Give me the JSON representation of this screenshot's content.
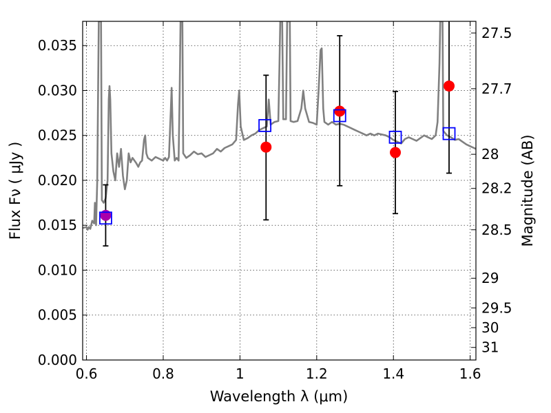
{
  "chart_data": {
    "type": "scatter",
    "title": "",
    "xlabel": "Wavelength  λ (μm)",
    "ylabel": "Flux  Fν  ( μJy )",
    "y2label": "Magnitude (AB)",
    "xlim": [
      0.59,
      1.615
    ],
    "ylim": [
      0.0,
      0.0377
    ],
    "grid": true,
    "x_ticks": [
      0.6,
      0.8,
      1.0,
      1.2,
      1.4,
      1.6
    ],
    "x_tick_labels": [
      "0.6",
      "0.8",
      "1",
      "1.2",
      "1.4",
      "1.6"
    ],
    "y_ticks": [
      0.0,
      0.005,
      0.01,
      0.015,
      0.02,
      0.025,
      0.03,
      0.035
    ],
    "y_tick_labels": [
      "0.000",
      "0.005",
      "0.010",
      "0.015",
      "0.020",
      "0.025",
      "0.030",
      "0.035"
    ],
    "y2_ticks": [
      {
        "label": "27.5",
        "flux": 0.0364
      },
      {
        "label": "27.7",
        "flux": 0.0302
      },
      {
        "label": "28",
        "flux": 0.0229
      },
      {
        "label": "28.2",
        "flux": 0.0191
      },
      {
        "label": "28.5",
        "flux": 0.0145
      },
      {
        "label": "29",
        "flux": 0.0091
      },
      {
        "label": "29.5",
        "flux": 0.0058
      },
      {
        "label": "30",
        "flux": 0.0036
      },
      {
        "label": "31",
        "flux": 0.0014
      }
    ],
    "colors": {
      "model": "#808080",
      "observed": "#ff0000",
      "synthetic": "#0000ff",
      "errorbar": "#000000",
      "overlap": "#aa00aa"
    },
    "series": [
      {
        "key": "model_spectrum",
        "style": "line",
        "points": [
          [
            0.59,
            0.0147
          ],
          [
            0.6,
            0.0148
          ],
          [
            0.603,
            0.0145
          ],
          [
            0.606,
            0.0148
          ],
          [
            0.61,
            0.0146
          ],
          [
            0.615,
            0.0155
          ],
          [
            0.62,
            0.0152
          ],
          [
            0.622,
            0.0175
          ],
          [
            0.625,
            0.015
          ],
          [
            0.628,
            0.02
          ],
          [
            0.632,
            0.0377
          ],
          [
            0.638,
            0.0377
          ],
          [
            0.64,
            0.0178
          ],
          [
            0.645,
            0.0175
          ],
          [
            0.65,
            0.018
          ],
          [
            0.655,
            0.02
          ],
          [
            0.658,
            0.029
          ],
          [
            0.66,
            0.0305
          ],
          [
            0.662,
            0.029
          ],
          [
            0.665,
            0.023
          ],
          [
            0.67,
            0.021
          ],
          [
            0.675,
            0.02
          ],
          [
            0.68,
            0.023
          ],
          [
            0.685,
            0.0215
          ],
          [
            0.69,
            0.0235
          ],
          [
            0.695,
            0.0205
          ],
          [
            0.7,
            0.019
          ],
          [
            0.705,
            0.02
          ],
          [
            0.71,
            0.023
          ],
          [
            0.715,
            0.022
          ],
          [
            0.72,
            0.0225
          ],
          [
            0.725,
            0.0222
          ],
          [
            0.73,
            0.0219
          ],
          [
            0.735,
            0.0215
          ],
          [
            0.74,
            0.022
          ],
          [
            0.745,
            0.0222
          ],
          [
            0.75,
            0.0245
          ],
          [
            0.753,
            0.025
          ],
          [
            0.756,
            0.023
          ],
          [
            0.76,
            0.0225
          ],
          [
            0.77,
            0.0222
          ],
          [
            0.78,
            0.0226
          ],
          [
            0.79,
            0.0224
          ],
          [
            0.8,
            0.0222
          ],
          [
            0.805,
            0.0225
          ],
          [
            0.81,
            0.0222
          ],
          [
            0.815,
            0.0226
          ],
          [
            0.82,
            0.028
          ],
          [
            0.822,
            0.0303
          ],
          [
            0.825,
            0.025
          ],
          [
            0.83,
            0.0222
          ],
          [
            0.835,
            0.0225
          ],
          [
            0.84,
            0.0222
          ],
          [
            0.843,
            0.03
          ],
          [
            0.845,
            0.0377
          ],
          [
            0.85,
            0.0377
          ],
          [
            0.852,
            0.023
          ],
          [
            0.86,
            0.0225
          ],
          [
            0.87,
            0.0228
          ],
          [
            0.88,
            0.0232
          ],
          [
            0.89,
            0.0229
          ],
          [
            0.9,
            0.023
          ],
          [
            0.91,
            0.0226
          ],
          [
            0.92,
            0.0228
          ],
          [
            0.93,
            0.023
          ],
          [
            0.94,
            0.0235
          ],
          [
            0.95,
            0.0232
          ],
          [
            0.96,
            0.0236
          ],
          [
            0.97,
            0.0238
          ],
          [
            0.98,
            0.024
          ],
          [
            0.99,
            0.0245
          ],
          [
            0.995,
            0.0285
          ],
          [
            0.998,
            0.03
          ],
          [
            1.002,
            0.026
          ],
          [
            1.01,
            0.0245
          ],
          [
            1.02,
            0.0247
          ],
          [
            1.03,
            0.025
          ],
          [
            1.04,
            0.0252
          ],
          [
            1.05,
            0.0256
          ],
          [
            1.06,
            0.0258
          ],
          [
            1.07,
            0.026
          ],
          [
            1.075,
            0.029
          ],
          [
            1.08,
            0.0262
          ],
          [
            1.09,
            0.0265
          ],
          [
            1.1,
            0.0266
          ],
          [
            1.103,
            0.033
          ],
          [
            1.105,
            0.0377
          ],
          [
            1.11,
            0.0377
          ],
          [
            1.113,
            0.0268
          ],
          [
            1.12,
            0.0268
          ],
          [
            1.123,
            0.0377
          ],
          [
            1.13,
            0.0377
          ],
          [
            1.132,
            0.0266
          ],
          [
            1.14,
            0.0265
          ],
          [
            1.15,
            0.0266
          ],
          [
            1.16,
            0.028
          ],
          [
            1.165,
            0.03
          ],
          [
            1.17,
            0.028
          ],
          [
            1.18,
            0.0265
          ],
          [
            1.19,
            0.0264
          ],
          [
            1.2,
            0.0262
          ],
          [
            1.205,
            0.03
          ],
          [
            1.21,
            0.0345
          ],
          [
            1.213,
            0.0347
          ],
          [
            1.217,
            0.028
          ],
          [
            1.22,
            0.0265
          ],
          [
            1.23,
            0.0262
          ],
          [
            1.24,
            0.0265
          ],
          [
            1.25,
            0.0262
          ],
          [
            1.26,
            0.0263
          ],
          [
            1.27,
            0.0262
          ],
          [
            1.28,
            0.026
          ],
          [
            1.29,
            0.0258
          ],
          [
            1.3,
            0.0256
          ],
          [
            1.31,
            0.0254
          ],
          [
            1.32,
            0.0252
          ],
          [
            1.33,
            0.025
          ],
          [
            1.34,
            0.0252
          ],
          [
            1.35,
            0.025
          ],
          [
            1.36,
            0.0252
          ],
          [
            1.37,
            0.0251
          ],
          [
            1.38,
            0.025
          ],
          [
            1.39,
            0.0248
          ],
          [
            1.4,
            0.0245
          ],
          [
            1.41,
            0.0243
          ],
          [
            1.42,
            0.0241
          ],
          [
            1.43,
            0.0246
          ],
          [
            1.44,
            0.0248
          ],
          [
            1.45,
            0.0246
          ],
          [
            1.46,
            0.0244
          ],
          [
            1.47,
            0.0247
          ],
          [
            1.48,
            0.025
          ],
          [
            1.49,
            0.0248
          ],
          [
            1.5,
            0.0246
          ],
          [
            1.51,
            0.025
          ],
          [
            1.515,
            0.0265
          ],
          [
            1.52,
            0.033
          ],
          [
            1.522,
            0.0377
          ],
          [
            1.528,
            0.0377
          ],
          [
            1.53,
            0.0255
          ],
          [
            1.54,
            0.025
          ],
          [
            1.55,
            0.0248
          ],
          [
            1.56,
            0.0245
          ],
          [
            1.57,
            0.0246
          ],
          [
            1.58,
            0.0243
          ],
          [
            1.59,
            0.024
          ],
          [
            1.6,
            0.0238
          ],
          [
            1.61,
            0.0236
          ],
          [
            1.615,
            0.0235
          ]
        ]
      },
      {
        "key": "observed",
        "style": "points",
        "marker": "circle",
        "points": [
          {
            "x": 1.068,
            "y": 0.0237,
            "err": [
              0.0156,
              0.0317
            ]
          },
          {
            "x": 1.26,
            "y": 0.0277,
            "err": [
              0.0194,
              0.0361
            ]
          },
          {
            "x": 1.405,
            "y": 0.0231,
            "err": [
              0.0163,
              0.0299
            ]
          },
          {
            "x": 1.545,
            "y": 0.0305,
            "err": [
              0.0208,
              0.0377
            ]
          }
        ]
      },
      {
        "key": "synthetic",
        "style": "points",
        "marker": "square",
        "points": [
          {
            "x": 0.65,
            "y": 0.0158
          },
          {
            "x": 1.065,
            "y": 0.0261
          },
          {
            "x": 1.26,
            "y": 0.0272
          },
          {
            "x": 1.405,
            "y": 0.0248
          },
          {
            "x": 1.545,
            "y": 0.0252
          }
        ]
      },
      {
        "key": "blended",
        "style": "points",
        "marker": "circle",
        "points": [
          {
            "x": 0.65,
            "y": 0.0161,
            "err": [
              0.0127,
              0.0195
            ]
          }
        ]
      }
    ]
  }
}
